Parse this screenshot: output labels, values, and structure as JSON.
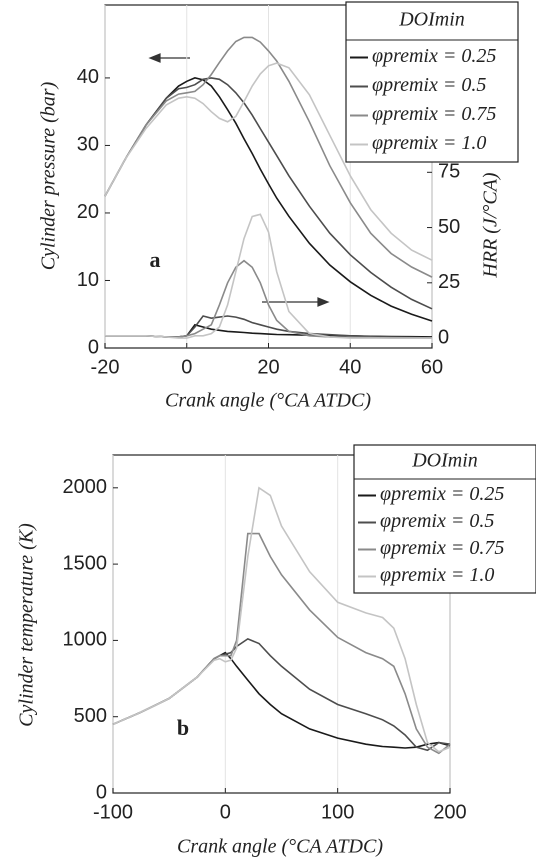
{
  "chart_data": [
    {
      "type": "line",
      "annotation": "a",
      "xlabel": "Crank angle (°CA ATDC)",
      "ylabel": "Cylinder pressure (bar)",
      "y2label": "HRR (J/°CA)",
      "legend_title": "DOImin",
      "legend": "upper right",
      "xgrid": true,
      "xlim": [
        -20,
        60
      ],
      "xticks": [
        -20,
        0,
        20,
        40,
        60
      ],
      "ylim": [
        0,
        50.8
      ],
      "yticks": [
        0,
        10,
        20,
        30,
        40
      ],
      "y2lim": [
        -4.5,
        150.7
      ],
      "y2ticks": [
        0,
        25,
        50,
        75
      ],
      "x": [
        -20,
        -15,
        -10,
        -5,
        -2,
        0,
        2,
        4,
        6,
        8,
        10,
        12,
        14,
        16,
        18,
        20,
        22,
        25,
        30,
        35,
        40,
        45,
        50,
        55,
        60
      ],
      "series": [
        {
          "name": "φpremix = 0.25",
          "color": "#1a1a1a",
          "values": [
            22.5,
            28,
            33,
            37,
            38.8,
            39.5,
            40,
            39.7,
            38.8,
            37.2,
            35.3,
            33.3,
            31,
            28.8,
            26.5,
            24.3,
            22.2,
            19.5,
            15.5,
            12.3,
            9.8,
            7.8,
            6.2,
            5,
            4
          ]
        },
        {
          "name": "φpremix = 0.5",
          "color": "#4d4d4d",
          "values": [
            22.5,
            28,
            33,
            37,
            38.4,
            38.6,
            39,
            39.8,
            40,
            39.8,
            39,
            37.8,
            36.3,
            34.5,
            32.5,
            30.5,
            28.5,
            25.5,
            21,
            17,
            13.8,
            11.2,
            9,
            7.2,
            5.8
          ]
        },
        {
          "name": "φpremix = 0.75",
          "color": "#8a8a8a",
          "values": [
            22.5,
            28,
            33,
            36.6,
            37.6,
            37.8,
            38,
            39,
            40.5,
            42.3,
            44,
            45.4,
            46,
            46,
            45.3,
            44,
            42.5,
            39.5,
            33.5,
            27,
            21.5,
            17,
            14,
            12,
            10.5
          ]
        },
        {
          "name": "φpremix = 1.0",
          "color": "#c4c4c4",
          "values": [
            22.5,
            28,
            32.5,
            36,
            37,
            37.2,
            37,
            36.2,
            35,
            34,
            33.5,
            34.3,
            36.5,
            38.8,
            40.6,
            41.8,
            42.2,
            41.5,
            37.5,
            31.5,
            25.5,
            20.5,
            17,
            14.5,
            13
          ]
        },
        {
          "color": "#1a1a1a",
          "axis": "y2",
          "values": [
            1,
            1,
            1,
            0.5,
            0.5,
            1,
            6,
            5,
            4,
            3.5,
            3,
            2.8,
            2.5,
            2.2,
            2,
            1.8,
            1.6,
            1.5,
            1.3,
            1.1,
            1,
            0.8,
            0.7,
            0.6,
            0.5
          ]
        },
        {
          "color": "#4d4d4d",
          "axis": "y2",
          "values": [
            1,
            1,
            1,
            0.5,
            0.5,
            1,
            5,
            10,
            9,
            9.5,
            10,
            9.5,
            8.5,
            7,
            6,
            5,
            4,
            3,
            2,
            1.5,
            1,
            0.7,
            0.5,
            0.3,
            0
          ]
        },
        {
          "color": "#8a8a8a",
          "axis": "y2",
          "values": [
            1,
            1,
            1,
            0.5,
            0.5,
            1,
            2,
            4,
            6,
            15,
            25,
            32,
            35,
            32,
            25,
            15,
            8,
            3,
            1,
            0.5,
            0.3,
            0.2,
            0,
            0,
            0
          ]
        },
        {
          "color": "#c4c4c4",
          "axis": "y2",
          "values": [
            1,
            1,
            1,
            0.5,
            0,
            0,
            1,
            1,
            2,
            5,
            15,
            30,
            45,
            55,
            56,
            48,
            30,
            12,
            2,
            0.5,
            0,
            0,
            0,
            0,
            0
          ]
        }
      ]
    },
    {
      "type": "line",
      "annotation": "b",
      "xlabel": "Crank angle (°CA ATDC)",
      "ylabel": "Cylinder temperature (K)",
      "legend_title": "DOImin",
      "legend": "upper right",
      "xgrid": true,
      "xlim": [
        -100,
        200
      ],
      "xticks": [
        -100,
        0,
        100,
        200
      ],
      "ylim": [
        0,
        2215
      ],
      "yticks": [
        0,
        500,
        1000,
        1500,
        2000
      ],
      "x": [
        -100,
        -75,
        -50,
        -25,
        -10,
        -5,
        0,
        5,
        10,
        20,
        30,
        40,
        50,
        75,
        100,
        125,
        140,
        150,
        160,
        170,
        180,
        190,
        200
      ],
      "series": [
        {
          "name": "φpremix = 0.25",
          "color": "#1a1a1a",
          "values": [
            450,
            530,
            620,
            760,
            880,
            900,
            920,
            880,
            830,
            740,
            650,
            580,
            520,
            420,
            360,
            320,
            305,
            300,
            295,
            300,
            320,
            330,
            310
          ]
        },
        {
          "name": "φpremix = 0.5",
          "color": "#4d4d4d",
          "values": [
            450,
            530,
            620,
            760,
            880,
            900,
            910,
            920,
            960,
            1010,
            980,
            900,
            830,
            680,
            580,
            520,
            480,
            440,
            380,
            300,
            280,
            330,
            320
          ]
        },
        {
          "name": "φpremix = 0.75",
          "color": "#8a8a8a",
          "values": [
            450,
            530,
            620,
            760,
            880,
            900,
            900,
            900,
            1000,
            1700,
            1700,
            1550,
            1430,
            1200,
            1020,
            920,
            880,
            830,
            650,
            420,
            300,
            260,
            320
          ]
        },
        {
          "name": "φpremix = 1.0",
          "color": "#c4c4c4",
          "values": [
            450,
            530,
            620,
            760,
            870,
            880,
            860,
            870,
            950,
            1550,
            2000,
            1950,
            1750,
            1450,
            1250,
            1180,
            1150,
            1080,
            880,
            580,
            330,
            270,
            300
          ]
        }
      ]
    }
  ]
}
